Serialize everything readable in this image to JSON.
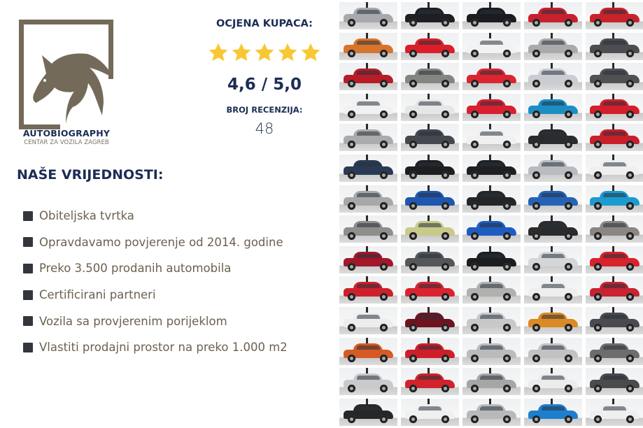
{
  "brand": {
    "name": "AUTOBIOGRAPHY",
    "subtitle": "CENTAR ZA VOZILA ZAGREB",
    "logo_color": "#736a5a"
  },
  "rating": {
    "title": "OCJENA KUPACA:",
    "stars": 5,
    "score": "4,6 / 5,0",
    "reviews_label": "BROJ RECENZIJA:",
    "reviews_count": "48",
    "star_color": "#f7c833"
  },
  "values": {
    "title": "NAŠE VRIJEDNOSTI:",
    "items": [
      "Obiteljska tvrtka",
      "Opravdavamo povjerenje od 2014. godine",
      "Preko 3.500 prodanih automobila",
      "Certificirani partneri",
      "Vozila sa provjerenim porijeklom",
      "Vlastiti prodajni prostor na preko 1.000 m2"
    ]
  },
  "colors": {
    "navy": "#1c2d55",
    "text": "#6b614f",
    "bullet": "#33363b"
  },
  "car_grid": [
    [
      "#a7a9ad",
      "#1e1f22",
      "#1b1c1f",
      "#c8202e",
      "#c8232a"
    ],
    [
      "#d8752c",
      "#dd1e2a",
      "#f2f2f2",
      "#a9aaac",
      "#4c4d50"
    ],
    [
      "#b81c26",
      "#858582",
      "#dc2530",
      "#c9ccd0",
      "#505153"
    ],
    [
      "#f1f1f1",
      "#e6e6e6",
      "#d92030",
      "#1b8fc4",
      "#d41e2a"
    ],
    [
      "#a9abad",
      "#45484e",
      "#f0f0f0",
      "#2a2b2e",
      "#c91f2b"
    ],
    [
      "#2a3a55",
      "#1d1e20",
      "#1e1f21",
      "#b8bcc0",
      "#efefef"
    ],
    [
      "#a6a8aa",
      "#1f56b0",
      "#242526",
      "#2463b8",
      "#1c9bd0"
    ],
    [
      "#8e8e8c",
      "#c9c98a",
      "#1f5cc2",
      "#2b2b2d",
      "#8a8782"
    ],
    [
      "#a3172a",
      "#545658",
      "#1c1d1f",
      "#d4d6d8",
      "#d8222c"
    ],
    [
      "#cf1f2b",
      "#db2330",
      "#b0b0ae",
      "#eeeeee",
      "#c92230"
    ],
    [
      "#ededed",
      "#6e1420",
      "#c6c8ca",
      "#dc8a24",
      "#4a4b4e"
    ],
    [
      "#d65a25",
      "#cf1e2a",
      "#b9bbbd",
      "#c0c2c4",
      "#6d6d6c"
    ],
    [
      "#c8cacc",
      "#d2222c",
      "#a5a6a6",
      "#ececec",
      "#4a4b4d"
    ],
    [
      "#262729",
      "#f0f0f0",
      "#b7b9bb",
      "#1d7fd0",
      "#efefef"
    ]
  ]
}
